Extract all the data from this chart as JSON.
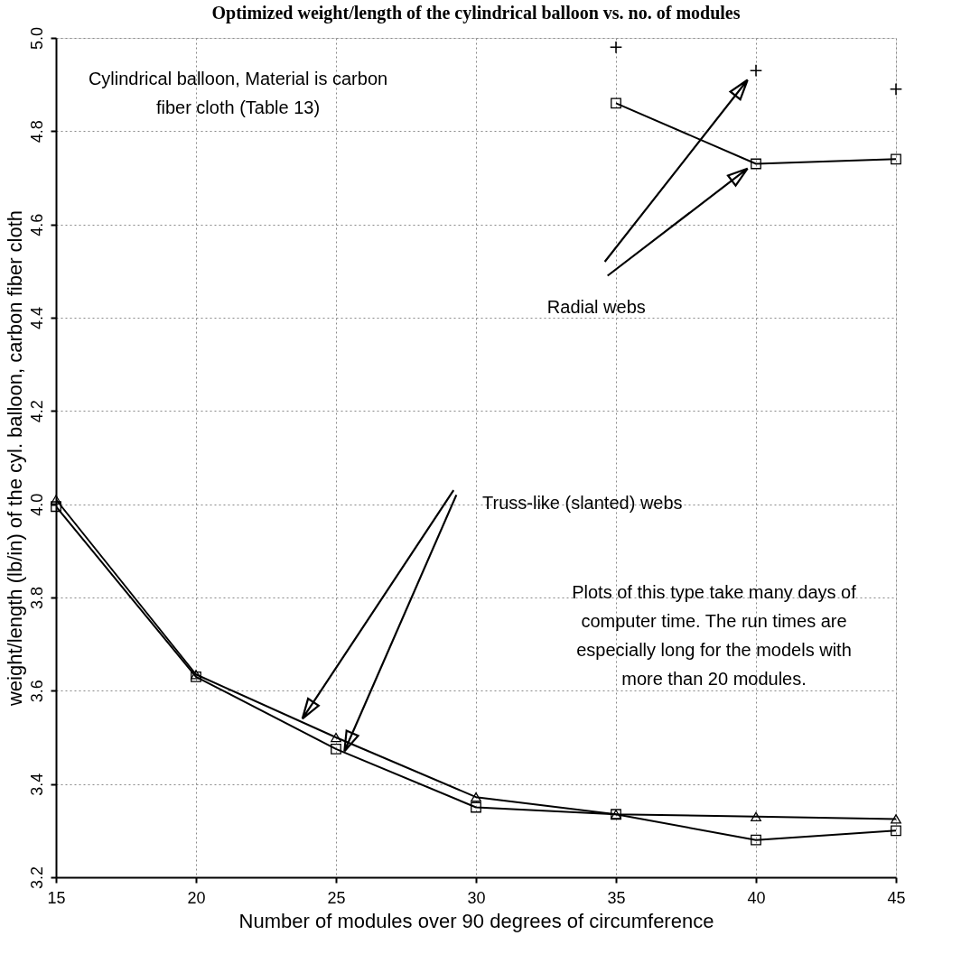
{
  "chart_data": {
    "type": "line",
    "title": "Optimized weight/length of the cylindrical balloon vs. no. of modules",
    "xlabel": "Number of modules over 90 degrees of circumference",
    "ylabel": "weight/length (lb/in) of the cyl. balloon, carbon fiber cloth",
    "xlim": [
      15,
      45
    ],
    "xticks": [
      15,
      20,
      25,
      30,
      35,
      40,
      45
    ],
    "ylim": [
      3.2,
      5.0
    ],
    "yticks": [
      3.2,
      3.4,
      3.6,
      3.8,
      {
        "value": 4.0,
        "label": "4.0"
      },
      4.2,
      4.4,
      4.6,
      4.8,
      {
        "value": 5.0,
        "label": "5.0"
      }
    ],
    "grid": true,
    "series": [
      {
        "type": "scatter",
        "marker": "cross",
        "color": "#000000",
        "x": [
          35,
          40,
          45
        ],
        "values": [
          4.98,
          4.93,
          4.89
        ]
      },
      {
        "marker": "square",
        "color": "#000000",
        "x": [
          35,
          40,
          45
        ],
        "values": [
          4.86,
          4.73,
          4.74
        ]
      },
      {
        "marker": "triangle",
        "color": "#000000",
        "x": [
          15,
          20,
          25,
          30,
          35,
          40,
          45
        ],
        "values": [
          4.01,
          3.635,
          3.5,
          3.372,
          3.335,
          3.33,
          3.325
        ]
      },
      {
        "marker": "square",
        "color": "#000000",
        "x": [
          15,
          20,
          25,
          30,
          35,
          40,
          45
        ],
        "values": [
          3.995,
          3.63,
          3.475,
          3.35,
          3.335,
          3.28,
          3.3
        ]
      }
    ],
    "annotations": [
      "Cylindrical balloon, Material is carbon\nfiber cloth (Table 13)",
      "Radial webs",
      "Truss-like (slanted) webs",
      "Plots of this type take many days of\ncomputer time. The run times are\nespecially long for the models with\nmore than 20 modules."
    ]
  }
}
